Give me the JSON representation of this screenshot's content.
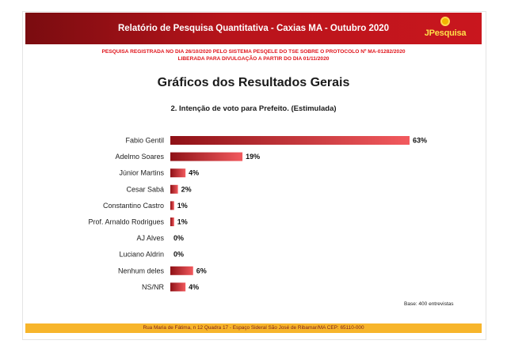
{
  "header": {
    "title": "Relatório de Pesquisa Quantitativa - Caxias MA - Outubro 2020",
    "logo_text": "JPesquisa",
    "brand_color": "#c9161e"
  },
  "notice": {
    "line1": "PESQUISA REGISTRADA NO DIA 26/10/2020 PELO SISTEMA PESQELE DO TSE SOBRE O PROTOCOLO Nº MA-01282/2020",
    "line2": "LIBERADA PARA DIVULGAÇÃO A PARTIR DO DIA 01/11/2020",
    "color": "#e0141b"
  },
  "section_title": "Gráficos dos Resultados Gerais",
  "question": "2. Intenção de voto para Prefeito. (Estimulada)",
  "chart_data": {
    "type": "bar",
    "orientation": "horizontal",
    "title": "2. Intenção de voto para Prefeito. (Estimulada)",
    "categories": [
      "Fabio Gentil",
      "Adelmo Soares",
      "Júnior Martins",
      "Cesar Sabá",
      "Constantino Castro",
      "Prof. Arnaldo Rodrigues",
      "AJ Alves",
      "Luciano Aldrin",
      "Nenhum deles",
      "NS/NR"
    ],
    "values": [
      63,
      19,
      4,
      2,
      1,
      1,
      0,
      0,
      6,
      4
    ],
    "value_labels": [
      "63%",
      "19%",
      "4%",
      "2%",
      "1%",
      "1%",
      "0%",
      "0%",
      "6%",
      "4%"
    ],
    "unit": "%",
    "xlim": [
      0,
      63
    ],
    "grid": false,
    "legend": "none",
    "bar_color_start": "#8f1116",
    "bar_color_end": "#f25a5e"
  },
  "base_note": "Base: 400 entrevistas",
  "footer": {
    "text": "Rua Maria de Fátima, n 12 Quadra 17 - Espaço Sideral São José de Ribamar/MA CEP: 65110-000",
    "color": "#f7b52b"
  }
}
